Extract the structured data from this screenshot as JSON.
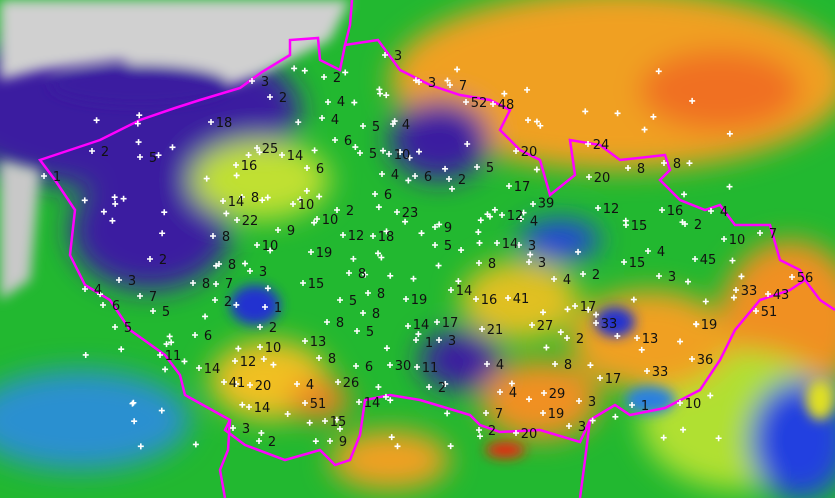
{
  "map": {
    "type": "precipitation radar map with station totals",
    "colors": {
      "border": "#ff00ff",
      "station_marker": "#ffffff",
      "label": "#111111",
      "no_rain": "#c8c8c8",
      "very_light": "#3a1fa0",
      "light": "#1a3cff",
      "low": "#2aa0e0",
      "moderate": "#1ec81e",
      "medium": "#a0e020",
      "high": "#f0d000",
      "heavy": "#f08020",
      "extreme": "#e81010"
    },
    "station_values": [
      "3",
      "2",
      "3",
      "2",
      "4",
      "4",
      "18",
      "25",
      "14",
      "16",
      "6",
      "2",
      "5",
      "1",
      "5",
      "4",
      "6",
      "5",
      "10",
      "4",
      "6",
      "23",
      "6",
      "2",
      "5",
      "17",
      "39",
      "12",
      "4",
      "20",
      "24",
      "20",
      "8",
      "8",
      "12",
      "16",
      "2",
      "4",
      "15",
      "10",
      "7",
      "4",
      "45",
      "15",
      "14",
      "3",
      "3",
      "8",
      "9",
      "5",
      "52",
      "48",
      "7",
      "3",
      "14",
      "8",
      "10",
      "2",
      "10",
      "22",
      "9",
      "12",
      "18",
      "8",
      "10",
      "19",
      "2",
      "8",
      "3",
      "8",
      "15",
      "4",
      "3",
      "7",
      "5",
      "6",
      "5",
      "8",
      "7",
      "2",
      "1",
      "2",
      "6",
      "5",
      "8",
      "8",
      "8",
      "5",
      "13",
      "10",
      "8",
      "11",
      "14",
      "12",
      "41",
      "20",
      "6",
      "30",
      "4",
      "26",
      "51",
      "14",
      "14",
      "3",
      "2",
      "15",
      "9",
      "19",
      "14",
      "16",
      "41",
      "17",
      "14",
      "17",
      "21",
      "27",
      "33",
      "1",
      "3",
      "2",
      "11",
      "4",
      "2",
      "8",
      "2",
      "4",
      "3",
      "13",
      "36",
      "33",
      "17",
      "4",
      "29",
      "3",
      "1",
      "10",
      "7",
      "19",
      "3",
      "2",
      "20",
      "19",
      "33",
      "43",
      "51",
      "56"
    ]
  }
}
